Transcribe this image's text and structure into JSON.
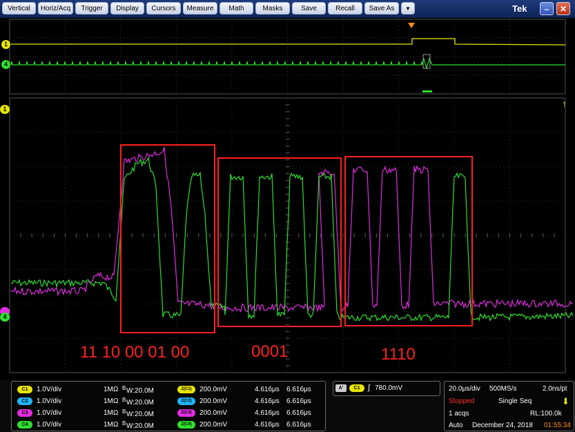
{
  "menu": {
    "items": [
      "Vertical",
      "Horiz/Acq",
      "Trigger",
      "Display",
      "Cursors",
      "Measure",
      "Math",
      "Masks",
      "Save",
      "Recall",
      "Save As"
    ],
    "dropdown_glyph": "▼",
    "logo": "Tek",
    "minimize_glyph": "–",
    "close_glyph": "✕"
  },
  "markers": {
    "ch1": "1",
    "ch4": "4",
    "trigger_pos_glyph": "▼",
    "trigger_level_glyph": "↑"
  },
  "annotations": {
    "group1_bits": "11 10 00 01 00",
    "group2_bits": "0001",
    "group3_bits": "1110"
  },
  "channels": [
    {
      "badge": "C1",
      "color": "#e6e600",
      "scale": "1.0V/div",
      "imp": "1MΩ",
      "bw_prefix": "B",
      "bw": "W:20.0M",
      "offset_badge": "Z(C1)",
      "offset": "200.0mV",
      "t1": "4.616μs",
      "t2": "6.616μs"
    },
    {
      "badge": "C2",
      "color": "#21b4ff",
      "scale": "1.0V/div",
      "imp": "1MΩ",
      "bw_prefix": "B",
      "bw": "W:20.0M",
      "offset_badge": "Z(C2)",
      "offset": "200.0mV",
      "t1": "4.616μs",
      "t2": "6.616μs"
    },
    {
      "badge": "C3",
      "color": "#e02ee0",
      "scale": "1.0V/div",
      "imp": "1MΩ",
      "bw_prefix": "B",
      "bw": "W:20.0M",
      "offset_badge": "Z(C3)",
      "offset": "200.0mV",
      "t1": "4.616μs",
      "t2": "6.616μs"
    },
    {
      "badge": "C4",
      "color": "#2ee02e",
      "scale": "1.0V/div",
      "imp": "1MΩ",
      "bw_prefix": "B",
      "bw": "W:20.0M",
      "offset_badge": "Z(C4)",
      "offset": "200.0mV",
      "t1": "4.616μs",
      "t2": "6.616μs"
    }
  ],
  "trigger": {
    "mode_badge": "A'",
    "source_badge": "C1",
    "slope_glyph": "∫",
    "level": "780.0mV"
  },
  "acquisition": {
    "timebase": "20.0μs/div",
    "sample_rate": "500MS/s",
    "resolution": "2.0ns/pt",
    "state": "Stopped",
    "mode": "Single Seq",
    "acqs": "1 acqs",
    "record_length": "RL:100.0k",
    "trigger_mode": "Auto",
    "date": "December 24, 2018",
    "time": "01:55:34",
    "level_glyph": "⬇"
  },
  "colors": {
    "ch1": "#e6e600",
    "ch3": "#e02ee0",
    "ch4": "#2ee02e",
    "annotation": "#ff2020",
    "time": "#ff8c1a",
    "stopped": "#ff3030"
  }
}
